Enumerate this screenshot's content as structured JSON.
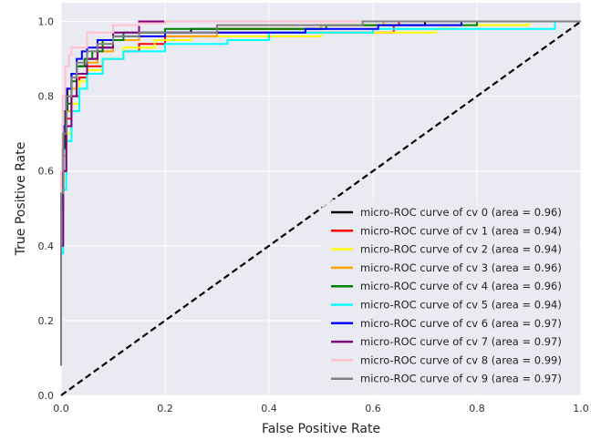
{
  "chart_data": {
    "type": "line",
    "title": "",
    "xlabel": "False Positive Rate",
    "ylabel": "True Positive Rate",
    "xlim": [
      0.0,
      1.0
    ],
    "ylim": [
      0.0,
      1.05
    ],
    "grid": true,
    "legend_position": "lower-right",
    "x_ticks": [
      "0.0",
      "0.2",
      "0.4",
      "0.6",
      "0.8",
      "1.0"
    ],
    "y_ticks": [
      "0.0",
      "0.2",
      "0.4",
      "0.6",
      "0.8",
      "1.0"
    ],
    "colors": {
      "background": "#eaeaf2",
      "grid": "#ffffff",
      "diagonal": "#000000"
    },
    "diagonal": {
      "x": [
        0,
        1
      ],
      "y": [
        0,
        1
      ],
      "style": "dashed"
    },
    "series": [
      {
        "name": "micro-ROC curve of cv 0 (area = 0.96)",
        "color": "#000000",
        "points": [
          [
            0,
            0.08
          ],
          [
            0.003,
            0.5
          ],
          [
            0.008,
            0.66
          ],
          [
            0.012,
            0.76
          ],
          [
            0.02,
            0.82
          ],
          [
            0.03,
            0.86
          ],
          [
            0.05,
            0.88
          ],
          [
            0.07,
            0.9
          ],
          [
            0.1,
            0.93
          ],
          [
            0.15,
            0.95
          ],
          [
            0.25,
            0.97
          ],
          [
            0.5,
            0.98
          ],
          [
            0.7,
            0.99
          ],
          [
            0.9,
            1.0
          ],
          [
            1.0,
            1.0
          ]
        ]
      },
      {
        "name": "micro-ROC curve of cv 1 (area = 0.94)",
        "color": "#ff0000",
        "points": [
          [
            0,
            0.08
          ],
          [
            0.004,
            0.42
          ],
          [
            0.01,
            0.6
          ],
          [
            0.02,
            0.74
          ],
          [
            0.035,
            0.8
          ],
          [
            0.05,
            0.85
          ],
          [
            0.08,
            0.88
          ],
          [
            0.12,
            0.9
          ],
          [
            0.15,
            0.92
          ],
          [
            0.2,
            0.94
          ],
          [
            0.3,
            0.96
          ],
          [
            0.64,
            0.97
          ],
          [
            0.65,
            0.99
          ],
          [
            0.9,
            1.0
          ],
          [
            1.0,
            1.0
          ]
        ]
      },
      {
        "name": "micro-ROC curve of cv 2 (area = 0.94)",
        "color": "#ffff00",
        "points": [
          [
            0,
            0.08
          ],
          [
            0.004,
            0.4
          ],
          [
            0.01,
            0.58
          ],
          [
            0.02,
            0.7
          ],
          [
            0.035,
            0.78
          ],
          [
            0.05,
            0.84
          ],
          [
            0.08,
            0.87
          ],
          [
            0.12,
            0.9
          ],
          [
            0.18,
            0.93
          ],
          [
            0.25,
            0.95
          ],
          [
            0.5,
            0.96
          ],
          [
            0.72,
            0.97
          ],
          [
            0.74,
            0.98
          ],
          [
            0.9,
            0.99
          ],
          [
            1.0,
            1.0
          ]
        ]
      },
      {
        "name": "micro-ROC curve of cv 3 (area = 0.96)",
        "color": "#ffa500",
        "points": [
          [
            0,
            0.08
          ],
          [
            0.004,
            0.5
          ],
          [
            0.01,
            0.64
          ],
          [
            0.02,
            0.76
          ],
          [
            0.03,
            0.82
          ],
          [
            0.05,
            0.86
          ],
          [
            0.07,
            0.89
          ],
          [
            0.1,
            0.92
          ],
          [
            0.15,
            0.95
          ],
          [
            0.3,
            0.96
          ],
          [
            0.5,
            0.98
          ],
          [
            0.62,
            0.99
          ],
          [
            0.8,
            1.0
          ],
          [
            1.0,
            1.0
          ]
        ]
      },
      {
        "name": "micro-ROC curve of cv 4 (area = 0.96)",
        "color": "#008000",
        "points": [
          [
            0,
            0.08
          ],
          [
            0.004,
            0.5
          ],
          [
            0.01,
            0.66
          ],
          [
            0.02,
            0.78
          ],
          [
            0.03,
            0.84
          ],
          [
            0.045,
            0.88
          ],
          [
            0.06,
            0.9
          ],
          [
            0.08,
            0.92
          ],
          [
            0.12,
            0.95
          ],
          [
            0.2,
            0.97
          ],
          [
            0.51,
            0.98
          ],
          [
            0.8,
            0.99
          ],
          [
            0.9,
            1.0
          ],
          [
            1.0,
            1.0
          ]
        ]
      },
      {
        "name": "micro-ROC curve of cv 5 (area = 0.94)",
        "color": "#00ffff",
        "points": [
          [
            0,
            0.08
          ],
          [
            0.004,
            0.38
          ],
          [
            0.01,
            0.55
          ],
          [
            0.02,
            0.68
          ],
          [
            0.035,
            0.76
          ],
          [
            0.05,
            0.82
          ],
          [
            0.08,
            0.86
          ],
          [
            0.12,
            0.9
          ],
          [
            0.2,
            0.92
          ],
          [
            0.32,
            0.94
          ],
          [
            0.4,
            0.95
          ],
          [
            0.6,
            0.97
          ],
          [
            0.95,
            0.98
          ],
          [
            1.0,
            1.0
          ]
        ]
      },
      {
        "name": "micro-ROC curve of cv 6 (area = 0.97)",
        "color": "#0000ff",
        "points": [
          [
            0,
            0.08
          ],
          [
            0.004,
            0.56
          ],
          [
            0.01,
            0.72
          ],
          [
            0.02,
            0.82
          ],
          [
            0.03,
            0.86
          ],
          [
            0.04,
            0.9
          ],
          [
            0.05,
            0.92
          ],
          [
            0.07,
            0.93
          ],
          [
            0.1,
            0.95
          ],
          [
            0.2,
            0.96
          ],
          [
            0.47,
            0.97
          ],
          [
            0.61,
            0.98
          ],
          [
            0.77,
            0.99
          ],
          [
            0.8,
            1.0
          ],
          [
            1.0,
            1.0
          ]
        ]
      },
      {
        "name": "micro-ROC curve of cv 7 (area = 0.97)",
        "color": "#800080",
        "points": [
          [
            0,
            0.08
          ],
          [
            0.004,
            0.4
          ],
          [
            0.01,
            0.6
          ],
          [
            0.02,
            0.72
          ],
          [
            0.03,
            0.8
          ],
          [
            0.05,
            0.86
          ],
          [
            0.07,
            0.9
          ],
          [
            0.1,
            0.93
          ],
          [
            0.15,
            0.97
          ],
          [
            0.17,
            1.0
          ],
          [
            0.2,
            1.0
          ],
          [
            1.0,
            1.0
          ]
        ]
      },
      {
        "name": "micro-ROC curve of cv 8 (area = 0.99)",
        "color": "#ffc0cb",
        "points": [
          [
            0,
            0.08
          ],
          [
            0.003,
            0.6
          ],
          [
            0.008,
            0.8
          ],
          [
            0.015,
            0.88
          ],
          [
            0.02,
            0.91
          ],
          [
            0.05,
            0.93
          ],
          [
            0.1,
            0.97
          ],
          [
            0.15,
            0.99
          ],
          [
            0.2,
            0.995
          ],
          [
            0.3,
            1.0
          ],
          [
            1.0,
            1.0
          ]
        ]
      },
      {
        "name": "micro-ROC curve of cv 9 (area = 0.97)",
        "color": "#808080",
        "points": [
          [
            0,
            0.08
          ],
          [
            0.004,
            0.54
          ],
          [
            0.01,
            0.7
          ],
          [
            0.02,
            0.8
          ],
          [
            0.03,
            0.85
          ],
          [
            0.05,
            0.89
          ],
          [
            0.07,
            0.92
          ],
          [
            0.1,
            0.94
          ],
          [
            0.15,
            0.96
          ],
          [
            0.3,
            0.97
          ],
          [
            0.58,
            0.99
          ],
          [
            0.6,
            1.0
          ],
          [
            1.0,
            1.0
          ]
        ]
      }
    ]
  }
}
